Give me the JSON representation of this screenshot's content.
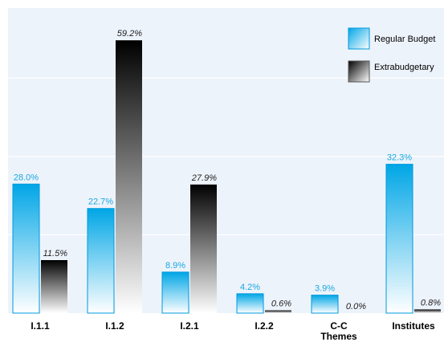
{
  "chart_data": {
    "type": "bar",
    "categories": [
      [
        "I.1.1"
      ],
      [
        "I.1.2"
      ],
      [
        "I.2.1"
      ],
      [
        "I.2.2"
      ],
      [
        "C-C",
        "Themes"
      ],
      [
        "Institutes"
      ]
    ],
    "series": [
      {
        "name": "Regular Budget",
        "values": [
          28.0,
          22.7,
          8.9,
          4.2,
          3.9,
          32.3
        ],
        "labels": [
          "28.0%",
          "22.7%",
          "8.9%",
          "4.2%",
          "3.9%",
          "32.3%"
        ]
      },
      {
        "name": "Extrabudgetary",
        "values": [
          11.5,
          59.2,
          27.9,
          0.6,
          0.0,
          0.8
        ],
        "labels": [
          "11.5%",
          "59.2%",
          "27.9%",
          "0.6%",
          "0.0%",
          "0.8%"
        ]
      }
    ],
    "ylim": [
      0,
      68
    ],
    "grid": true,
    "legend_position": "top-right"
  },
  "colors": {
    "plot_background": "#edf3fb",
    "gridline": "#ffffff",
    "regular_budget_top": "#00a6e6",
    "regular_budget_bottom": "#ffffff",
    "extrabudgetary_top": "#000000",
    "extrabudgetary_bottom": "#ffffff",
    "regular_label": "#1aa7e0",
    "extra_label": "#222222"
  }
}
